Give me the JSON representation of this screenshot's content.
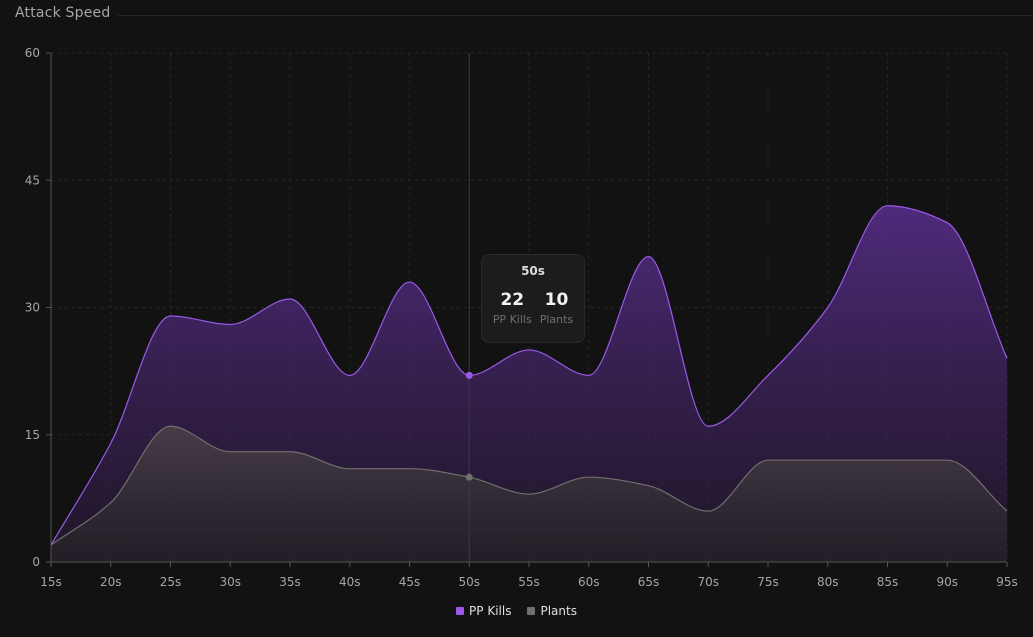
{
  "header": {
    "title": "Attack Speed"
  },
  "chart_data": {
    "type": "area",
    "title": "Attack Speed",
    "x": [
      "15s",
      "20s",
      "25s",
      "30s",
      "35s",
      "40s",
      "45s",
      "50s",
      "55s",
      "60s",
      "65s",
      "70s",
      "75s",
      "80s",
      "85s",
      "90s",
      "95s"
    ],
    "ylim": [
      0,
      60
    ],
    "yticks": [
      0,
      15,
      30,
      45,
      60
    ],
    "grid": true,
    "legend_position": "bottom",
    "series": [
      {
        "name": "PP Kills",
        "color": "#9b59e8",
        "values": [
          2,
          14,
          29,
          28,
          31,
          22,
          33,
          22,
          25,
          22,
          36,
          16,
          22,
          30,
          42,
          40,
          24
        ]
      },
      {
        "name": "Plants",
        "color": "#6f6f6f",
        "values": [
          2,
          7,
          16,
          13,
          13,
          11,
          11,
          10,
          8,
          10,
          9,
          6,
          12,
          12,
          12,
          12,
          6
        ]
      }
    ],
    "tooltip": {
      "label": "50s",
      "items": [
        {
          "value": "22",
          "label": "PP Kills"
        },
        {
          "value": "10",
          "label": "Plants"
        }
      ]
    }
  }
}
